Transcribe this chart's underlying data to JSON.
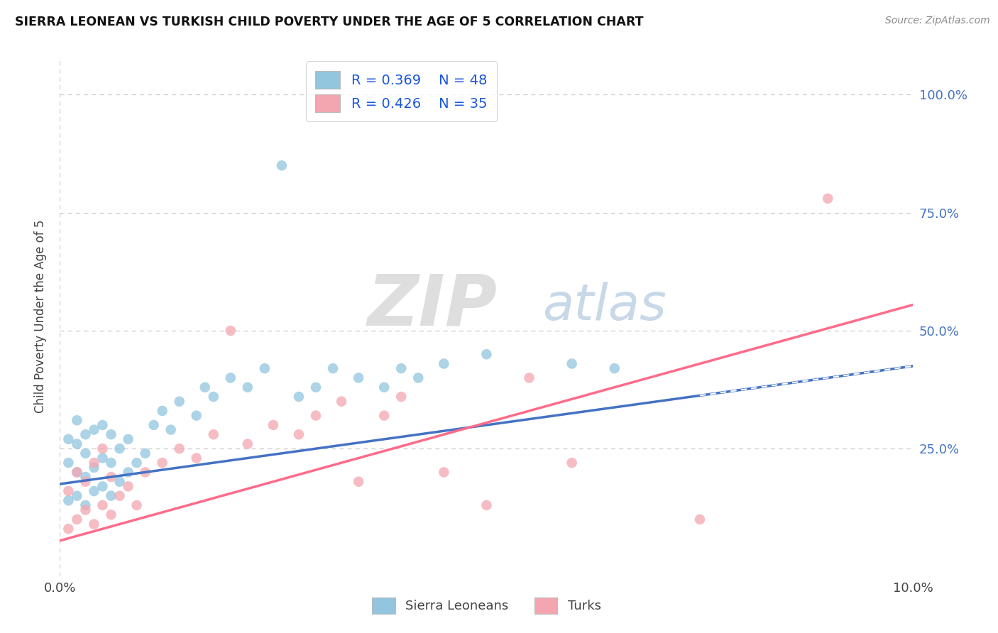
{
  "title": "SIERRA LEONEAN VS TURKISH CHILD POVERTY UNDER THE AGE OF 5 CORRELATION CHART",
  "source": "Source: ZipAtlas.com",
  "ylabel": "Child Poverty Under the Age of 5",
  "xlim": [
    0.0,
    0.1
  ],
  "ylim": [
    -0.02,
    1.08
  ],
  "legend_r1": "R = 0.369",
  "legend_n1": "N = 48",
  "legend_r2": "R = 0.426",
  "legend_n2": "N = 35",
  "legend_label1": "Sierra Leoneans",
  "legend_label2": "Turks",
  "color_sierra": "#92C5DE",
  "color_turks": "#F4A6B0",
  "color_line_sierra": "#4472C4",
  "color_line_turks": "#FF6B8A",
  "sierra_x": [
    0.001,
    0.001,
    0.001,
    0.002,
    0.002,
    0.002,
    0.002,
    0.003,
    0.003,
    0.003,
    0.003,
    0.004,
    0.004,
    0.004,
    0.005,
    0.005,
    0.005,
    0.006,
    0.006,
    0.006,
    0.007,
    0.007,
    0.008,
    0.008,
    0.009,
    0.01,
    0.011,
    0.012,
    0.013,
    0.014,
    0.016,
    0.017,
    0.018,
    0.02,
    0.022,
    0.024,
    0.026,
    0.028,
    0.03,
    0.032,
    0.035,
    0.038,
    0.04,
    0.042,
    0.045,
    0.05,
    0.06,
    0.065
  ],
  "sierra_y": [
    0.14,
    0.22,
    0.27,
    0.15,
    0.2,
    0.26,
    0.31,
    0.13,
    0.19,
    0.24,
    0.28,
    0.16,
    0.21,
    0.29,
    0.17,
    0.23,
    0.3,
    0.15,
    0.22,
    0.28,
    0.18,
    0.25,
    0.2,
    0.27,
    0.22,
    0.24,
    0.3,
    0.33,
    0.29,
    0.35,
    0.32,
    0.38,
    0.36,
    0.4,
    0.38,
    0.42,
    0.85,
    0.36,
    0.38,
    0.42,
    0.4,
    0.38,
    0.42,
    0.4,
    0.43,
    0.45,
    0.43,
    0.42
  ],
  "turks_x": [
    0.001,
    0.001,
    0.002,
    0.002,
    0.003,
    0.003,
    0.004,
    0.004,
    0.005,
    0.005,
    0.006,
    0.006,
    0.007,
    0.008,
    0.009,
    0.01,
    0.012,
    0.014,
    0.016,
    0.018,
    0.02,
    0.022,
    0.025,
    0.028,
    0.03,
    0.033,
    0.035,
    0.038,
    0.04,
    0.045,
    0.05,
    0.055,
    0.06,
    0.075,
    0.09
  ],
  "turks_y": [
    0.08,
    0.16,
    0.1,
    0.2,
    0.12,
    0.18,
    0.09,
    0.22,
    0.13,
    0.25,
    0.11,
    0.19,
    0.15,
    0.17,
    0.13,
    0.2,
    0.22,
    0.25,
    0.23,
    0.28,
    0.5,
    0.26,
    0.3,
    0.28,
    0.32,
    0.35,
    0.18,
    0.32,
    0.36,
    0.2,
    0.13,
    0.4,
    0.22,
    0.1,
    0.78
  ],
  "line_sierra_x0": 0.0,
  "line_sierra_y0": 0.175,
  "line_sierra_x1": 0.1,
  "line_sierra_y1": 0.425,
  "line_turks_x0": 0.0,
  "line_turks_y0": 0.055,
  "line_turks_x1": 0.1,
  "line_turks_y1": 0.555
}
